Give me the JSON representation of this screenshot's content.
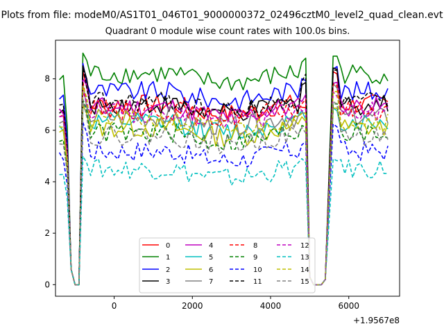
{
  "figure": {
    "suptitle": "Plots from file: modeM0/AS1T01_046T01_9000000372_02496cztM0_level2_quad_clean.evt"
  },
  "chart_data": {
    "type": "line",
    "title": "Quadrant 0 module wise count rates with 100.0s bins.",
    "xlabel": "",
    "ylabel": "",
    "x_offset_label": "+1.9567e8",
    "xlim": [
      -1500,
      7300
    ],
    "ylim": [
      -0.45,
      9.5
    ],
    "xticks": [
      0,
      2000,
      4000,
      6000
    ],
    "yticks": [
      0,
      2,
      4,
      6,
      8
    ],
    "grid": false,
    "legend": {
      "placement": "lower center",
      "columns": 4
    },
    "x_segments": [
      {
        "start": -1400,
        "end": 4900,
        "step": 100
      },
      {
        "start": 5600,
        "end": 7000,
        "step": 100
      }
    ],
    "zero_segment": [
      -1000,
      5300
    ],
    "series": [
      {
        "name": "0",
        "color": "#ff0000",
        "dash": "solid",
        "level": 7.0,
        "peak": 8.3,
        "drop_level": 6.9
      },
      {
        "name": "1",
        "color": "#008000",
        "dash": "solid",
        "level": 8.2,
        "peak": 9.0,
        "drop_level": 8.7
      },
      {
        "name": "2",
        "color": "#0000ff",
        "dash": "solid",
        "level": 7.5,
        "peak": 8.6,
        "drop_level": 8.1
      },
      {
        "name": "3",
        "color": "#000000",
        "dash": "solid",
        "level": 7.0,
        "peak": 8.5,
        "drop_level": 7.9
      },
      {
        "name": "4",
        "color": "#bf00bf",
        "dash": "solid",
        "level": 6.9,
        "peak": 8.0,
        "drop_level": 7.3
      },
      {
        "name": "5",
        "color": "#00bfbf",
        "dash": "solid",
        "level": 6.3,
        "peak": 6.9,
        "drop_level": 6.6
      },
      {
        "name": "6",
        "color": "#bfbf00",
        "dash": "solid",
        "level": 6.1,
        "peak": 7.0,
        "drop_level": 6.4
      },
      {
        "name": "7",
        "color": "#808080",
        "dash": "solid",
        "level": 6.5,
        "peak": 7.8,
        "drop_level": 6.6
      },
      {
        "name": "8",
        "color": "#ff0000",
        "dash": "dashed",
        "level": 6.8,
        "peak": 7.9,
        "drop_level": 7.0
      },
      {
        "name": "9",
        "color": "#008000",
        "dash": "dashed",
        "level": 5.9,
        "peak": 7.2,
        "drop_level": 6.2
      },
      {
        "name": "10",
        "color": "#0000ff",
        "dash": "dashed",
        "level": 5.2,
        "peak": 6.3,
        "drop_level": 5.5
      },
      {
        "name": "11",
        "color": "#000000",
        "dash": "dashed",
        "level": 7.1,
        "peak": 8.5,
        "drop_level": 8.0
      },
      {
        "name": "12",
        "color": "#bf00bf",
        "dash": "dashed",
        "level": 6.7,
        "peak": 7.5,
        "drop_level": 6.9
      },
      {
        "name": "13",
        "color": "#00bfbf",
        "dash": "dashed",
        "level": 4.5,
        "peak": 5.0,
        "drop_level": 4.7
      },
      {
        "name": "14",
        "color": "#bfbf00",
        "dash": "dashed",
        "level": 6.4,
        "peak": 7.7,
        "drop_level": 6.5
      },
      {
        "name": "15",
        "color": "#808080",
        "dash": "dashed",
        "level": 5.8,
        "peak": 7.2,
        "drop_level": 6.0
      }
    ]
  }
}
